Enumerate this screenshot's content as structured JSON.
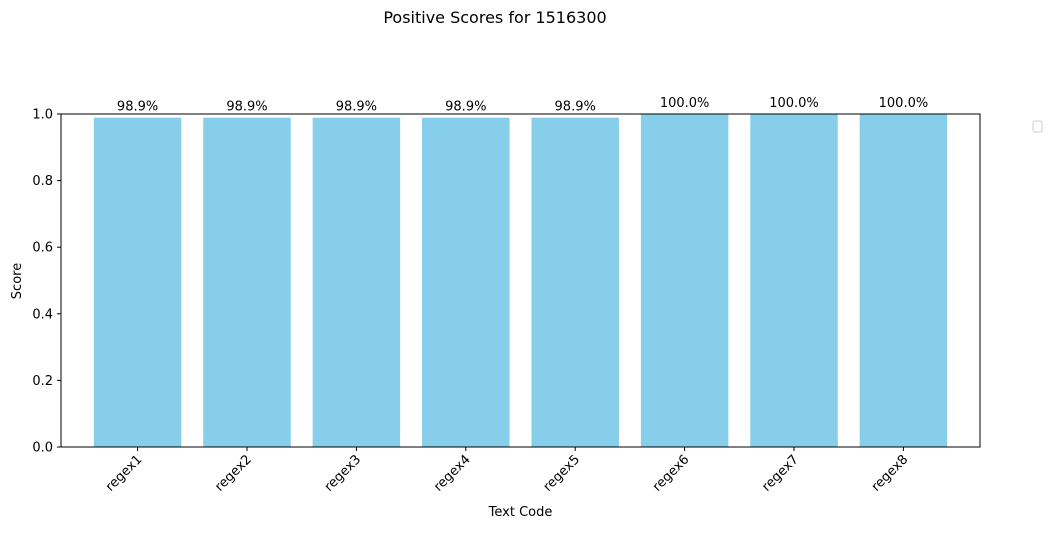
{
  "chart_data": {
    "type": "bar",
    "title": "Positive Scores for 1516300",
    "xlabel": "Text Code",
    "ylabel": "Score",
    "categories": [
      "regex1",
      "regex2",
      "regex3",
      "regex4",
      "regex5",
      "regex6",
      "regex7",
      "regex8"
    ],
    "values": [
      0.989,
      0.989,
      0.989,
      0.989,
      0.989,
      1.0,
      1.0,
      1.0
    ],
    "data_labels": [
      "98.9%",
      "98.9%",
      "98.9%",
      "98.9%",
      "98.9%",
      "100.0%",
      "100.0%",
      "100.0%"
    ],
    "ylim": [
      0,
      1.0
    ],
    "yticks": [
      0.0,
      0.2,
      0.4,
      0.6,
      0.8,
      1.0
    ],
    "ytick_labels": [
      "0.0",
      "0.2",
      "0.4",
      "0.6",
      "0.8",
      "1.0"
    ],
    "xtick_rotation": 45,
    "bar_color": "#87CEEB",
    "grid": false,
    "legend": {
      "placement": "outside-right-top",
      "entries": []
    }
  }
}
